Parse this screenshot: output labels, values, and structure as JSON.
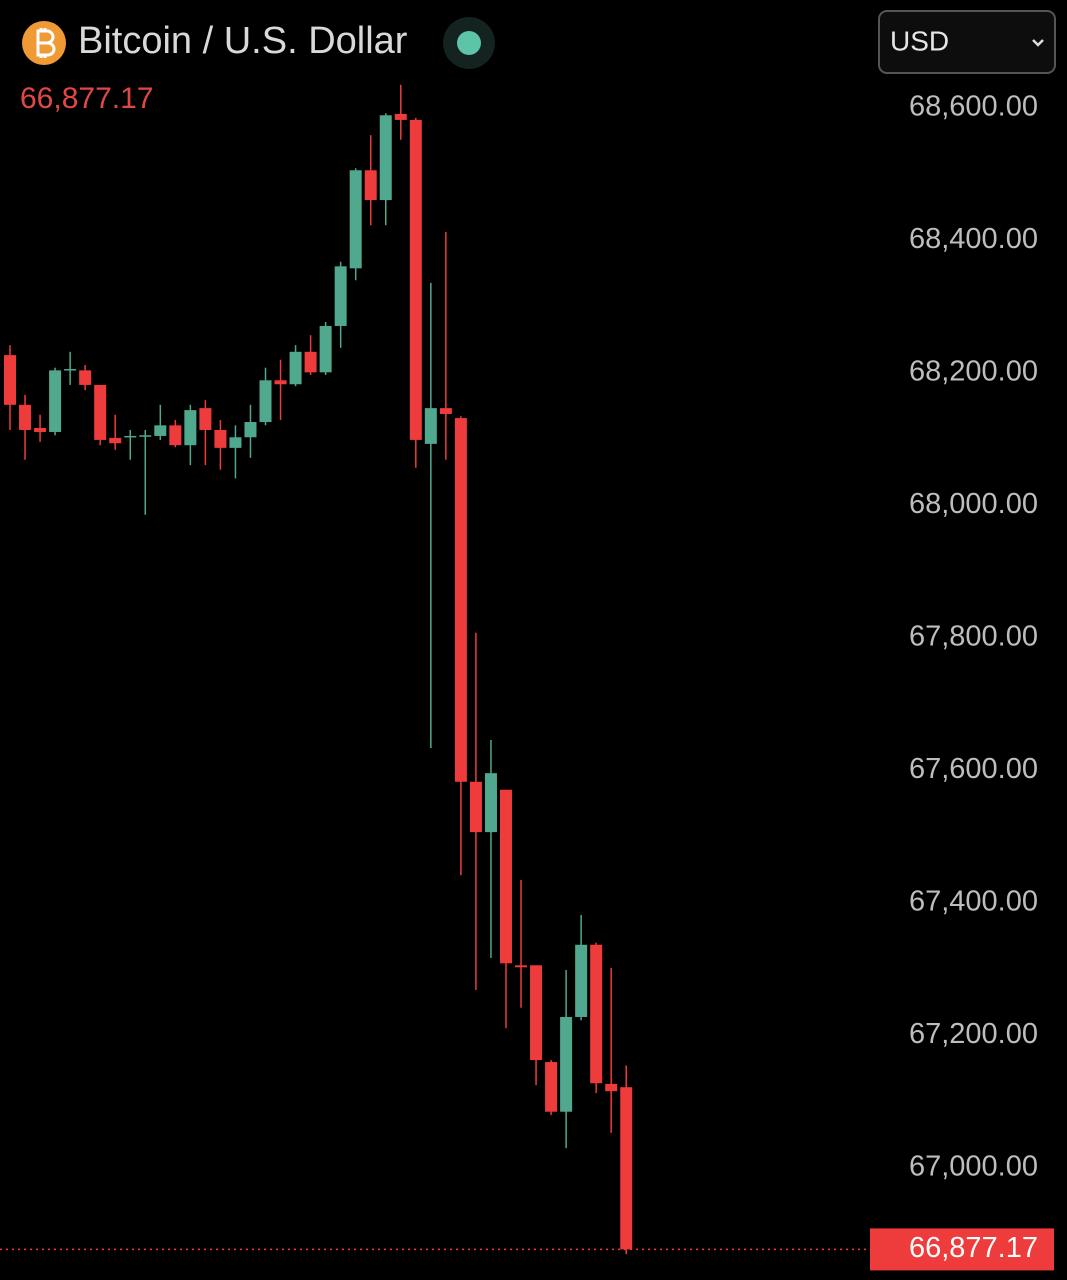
{
  "chart_data": {
    "type": "candlestick",
    "title": "Bitcoin / U.S. Dollar",
    "currency": "USD",
    "last_price": {
      "value": 66877.17,
      "label": "66,877.17"
    },
    "up_color": "#50a88f",
    "down_color": "#ee3b3b",
    "grid": false,
    "ylim": [
      66831,
      68763
    ],
    "yticks": [
      {
        "value": 68600,
        "label": "68,600.00"
      },
      {
        "value": 68400,
        "label": "68,400.00"
      },
      {
        "value": 68200,
        "label": "68,200.00"
      },
      {
        "value": 68000,
        "label": "68,000.00"
      },
      {
        "value": 67800,
        "label": "67,800.00"
      },
      {
        "value": 67600,
        "label": "67,600.00"
      },
      {
        "value": 67400,
        "label": "67,400.00"
      },
      {
        "value": 67200,
        "label": "67,200.00"
      },
      {
        "value": 67000,
        "label": "67,000.00"
      }
    ],
    "open": [
      68227,
      68152,
      68117,
      68111,
      68204,
      68204,
      68182,
      68102,
      68103,
      68105,
      68105,
      68121,
      68091,
      68147,
      68114,
      68087,
      68103,
      68126,
      68189,
      68183,
      68232,
      68201,
      68271,
      68358,
      68506,
      68461,
      68591,
      68582,
      68093,
      68147,
      68132,
      67583,
      67507,
      67571,
      67306,
      67306,
      67160,
      67085,
      67228,
      67337,
      67127,
      67122
    ],
    "high": [
      68242,
      68167,
      68137,
      68208,
      68232,
      68212,
      68182,
      68137,
      68114,
      68114,
      68152,
      68129,
      68152,
      68159,
      68129,
      68121,
      68152,
      68208,
      68220,
      68242,
      68257,
      68277,
      68368,
      68509,
      68559,
      68592,
      68635,
      68585,
      68336,
      68413,
      68135,
      67808,
      67646,
      67571,
      67435,
      67306,
      67163,
      67299,
      67382,
      67340,
      67302,
      67155
    ],
    "low": [
      68114,
      68069,
      68096,
      68106,
      68182,
      68174,
      68091,
      68084,
      68069,
      67986,
      68099,
      68088,
      68061,
      68061,
      68054,
      68041,
      68072,
      68121,
      68129,
      68180,
      68197,
      68197,
      68238,
      68340,
      68423,
      68423,
      68552,
      68057,
      67634,
      68069,
      67442,
      67269,
      67317,
      67211,
      67242,
      67125,
      67080,
      67030,
      67223,
      67113,
      67053,
      66870
    ],
    "close": [
      68152,
      68114,
      68111,
      68204,
      68206,
      68182,
      68099,
      68094,
      68105,
      68106,
      68121,
      68091,
      68144,
      68114,
      68087,
      68103,
      68126,
      68189,
      68183,
      68232,
      68201,
      68271,
      68361,
      68506,
      68461,
      68589,
      68582,
      68099,
      68147,
      68138,
      67583,
      67507,
      67596,
      67309,
      67303,
      67163,
      67085,
      67228,
      67337,
      67128,
      67116,
      66877.17
    ]
  }
}
